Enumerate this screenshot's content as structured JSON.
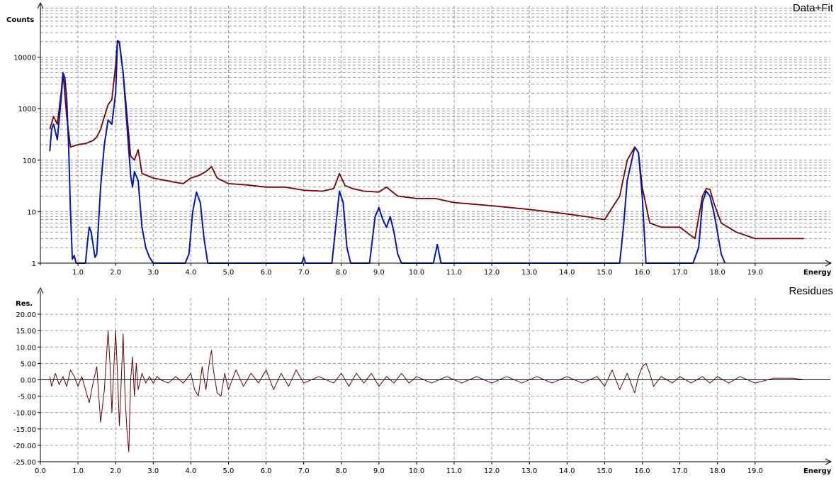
{
  "chart_data": [
    {
      "type": "line",
      "title": "Data+Fit",
      "xlabel": "Energy",
      "ylabel": "Counts",
      "yscale": "log",
      "xlim": [
        0,
        21
      ],
      "ylim": [
        1,
        100000
      ],
      "grid": true,
      "xticks": [
        "1.0",
        "2.0",
        "3.0",
        "4.0",
        "5.0",
        "6.0",
        "7.0",
        "8.0",
        "9.0",
        "10.0",
        "11.0",
        "12.0",
        "13.0",
        "14.0",
        "15.0",
        "16.0",
        "17.0",
        "18.0",
        "19.0"
      ],
      "yticks": [
        "1",
        "10",
        "100",
        "1000",
        "10000"
      ],
      "colors": {
        "data": "#7a0000",
        "fit": "#0018b0"
      },
      "series": [
        {
          "key": "data",
          "x": [
            0.25,
            0.35,
            0.45,
            0.55,
            0.6,
            0.7,
            0.8,
            1.0,
            1.2,
            1.4,
            1.5,
            1.6,
            1.7,
            1.8,
            1.9,
            2.0,
            2.05,
            2.1,
            2.2,
            2.3,
            2.4,
            2.5,
            2.6,
            2.7,
            3.0,
            3.5,
            3.8,
            4.0,
            4.2,
            4.4,
            4.55,
            4.7,
            5.0,
            5.5,
            6.0,
            6.5,
            7.0,
            7.5,
            7.8,
            7.95,
            8.1,
            8.3,
            8.6,
            9.0,
            9.2,
            9.5,
            10.0,
            10.5,
            11.0,
            11.5,
            12.0,
            12.5,
            13.0,
            13.5,
            14.0,
            14.5,
            15.0,
            15.4,
            15.6,
            15.8,
            15.9,
            16.0,
            16.2,
            16.5,
            17.0,
            17.4,
            17.6,
            17.7,
            17.8,
            17.9,
            18.1,
            18.5,
            19.0,
            19.5,
            20.0,
            20.3
          ],
          "y": [
            400,
            700,
            500,
            2000,
            5000,
            700,
            180,
            200,
            210,
            240,
            280,
            400,
            700,
            1200,
            1500,
            7000,
            21000,
            20000,
            5000,
            800,
            120,
            100,
            160,
            55,
            45,
            38,
            35,
            45,
            50,
            60,
            75,
            45,
            35,
            33,
            30,
            30,
            26,
            25,
            28,
            55,
            32,
            28,
            25,
            24,
            30,
            20,
            18,
            18,
            15,
            14,
            13,
            12,
            11,
            10,
            9,
            8,
            7,
            20,
            100,
            180,
            140,
            30,
            6,
            5,
            5,
            3,
            20,
            28,
            27,
            15,
            6,
            4,
            3,
            3,
            3,
            3
          ]
        },
        {
          "key": "fit",
          "x": [
            0.25,
            0.3,
            0.35,
            0.45,
            0.55,
            0.6,
            0.65,
            0.7,
            0.75,
            0.8,
            0.85,
            0.9,
            0.95,
            1.0,
            1.2,
            1.25,
            1.3,
            1.35,
            1.45,
            1.5,
            1.6,
            1.7,
            1.8,
            1.9,
            2.0,
            2.05,
            2.1,
            2.2,
            2.3,
            2.4,
            2.45,
            2.5,
            2.6,
            2.7,
            2.8,
            2.9,
            3.0,
            3.85,
            3.95,
            4.05,
            4.15,
            4.25,
            4.35,
            4.45,
            6.95,
            7.0,
            7.05,
            7.75,
            7.85,
            7.95,
            8.05,
            8.15,
            8.25,
            8.75,
            8.9,
            9.0,
            9.1,
            9.2,
            9.3,
            9.4,
            9.5,
            9.6,
            10.45,
            10.55,
            10.65,
            15.4,
            15.5,
            15.6,
            15.8,
            15.9,
            16.0,
            16.1,
            17.35,
            17.5,
            17.6,
            17.7,
            17.8,
            17.9,
            18.0,
            18.1,
            18.2
          ],
          "y": [
            150,
            400,
            500,
            250,
            1500,
            5000,
            4000,
            1500,
            200,
            10,
            1.2,
            1.4,
            1,
            1,
            1,
            2.5,
            5,
            4,
            1.3,
            1.5,
            30,
            200,
            600,
            500,
            2000,
            20000,
            19000,
            5000,
            500,
            50,
            30,
            60,
            40,
            5,
            2,
            1.3,
            1,
            1,
            1.5,
            10,
            24,
            15,
            3,
            1,
            1,
            1.3,
            1,
            1,
            5,
            25,
            15,
            2,
            1,
            1,
            8,
            12,
            7,
            5,
            8,
            4,
            1.5,
            1,
            1,
            2.3,
            1,
            1,
            5,
            40,
            180,
            140,
            20,
            1,
            1,
            2,
            15,
            25,
            20,
            10,
            4,
            1.5,
            1
          ]
        }
      ]
    },
    {
      "type": "line",
      "title": "Residues",
      "xlabel": "Energy",
      "ylabel": "Res.",
      "xlim": [
        0,
        21
      ],
      "ylim": [
        -25,
        25
      ],
      "grid": true,
      "xticks": [
        "0.0",
        "1.0",
        "2.0",
        "3.0",
        "4.0",
        "5.0",
        "6.0",
        "7.0",
        "8.0",
        "9.0",
        "10.0",
        "11.0",
        "12.0",
        "13.0",
        "14.0",
        "15.0",
        "16.0",
        "17.0",
        "18.0",
        "19.0"
      ],
      "yticks": [
        "-25.00",
        "-20.00",
        "-15.00",
        "-10.00",
        "-5.00",
        "0.00",
        "5.00",
        "10.00",
        "15.00",
        "20.00"
      ],
      "color": "#6a0000",
      "series": [
        {
          "x": [
            0.25,
            0.3,
            0.4,
            0.5,
            0.6,
            0.7,
            0.8,
            0.9,
            1.0,
            1.1,
            1.2,
            1.3,
            1.4,
            1.5,
            1.6,
            1.7,
            1.8,
            1.85,
            1.9,
            1.95,
            2.0,
            2.05,
            2.1,
            2.15,
            2.2,
            2.25,
            2.3,
            2.35,
            2.4,
            2.45,
            2.5,
            2.55,
            2.6,
            2.7,
            2.8,
            2.9,
            3.0,
            3.1,
            3.2,
            3.4,
            3.6,
            3.8,
            4.0,
            4.1,
            4.2,
            4.3,
            4.4,
            4.5,
            4.55,
            4.6,
            4.7,
            4.8,
            4.9,
            5.0,
            5.2,
            5.4,
            5.6,
            5.8,
            6.0,
            6.2,
            6.4,
            6.6,
            6.8,
            7.0,
            7.4,
            7.8,
            8.0,
            8.2,
            8.4,
            8.6,
            8.8,
            9.0,
            9.2,
            9.4,
            9.6,
            9.8,
            10.0,
            10.4,
            10.8,
            11.2,
            11.6,
            12.0,
            12.4,
            12.8,
            13.2,
            13.6,
            14.0,
            14.4,
            14.8,
            15.0,
            15.2,
            15.4,
            15.6,
            15.8,
            15.9,
            16.0,
            16.1,
            16.2,
            16.3,
            16.5,
            16.8,
            17.0,
            17.3,
            17.6,
            17.8,
            18.0,
            18.3,
            18.6,
            19.0,
            19.5,
            20.0,
            20.3
          ],
          "y": [
            1,
            -2,
            2,
            -1.5,
            1,
            -2,
            3,
            1,
            -2,
            1,
            -3,
            -7,
            -1,
            4,
            -13,
            -3,
            15,
            5,
            -10,
            3,
            15,
            2,
            -14,
            0,
            14,
            -5,
            -15,
            -22,
            0,
            7,
            -5,
            5,
            -3,
            2,
            -1,
            1,
            -1,
            1,
            0,
            -1,
            1,
            -1,
            2,
            -3,
            -5,
            4,
            -3,
            6,
            9,
            3,
            -4,
            -5,
            2,
            -3,
            3,
            -2,
            2,
            -1,
            3,
            -3,
            2,
            -2,
            3,
            -1,
            1,
            -1,
            2,
            -2,
            2,
            -1,
            2,
            -2,
            1,
            -1,
            2,
            -1,
            1,
            -1,
            1,
            -1,
            1,
            -1,
            1,
            -1,
            1,
            -1,
            1,
            -1,
            1,
            -2,
            3,
            -3,
            2,
            -4,
            1,
            4,
            5,
            2,
            -2,
            1,
            -1,
            1,
            -1,
            1,
            -1,
            1,
            -1,
            1,
            -1,
            0.5,
            0.5,
            0
          ]
        }
      ]
    }
  ]
}
